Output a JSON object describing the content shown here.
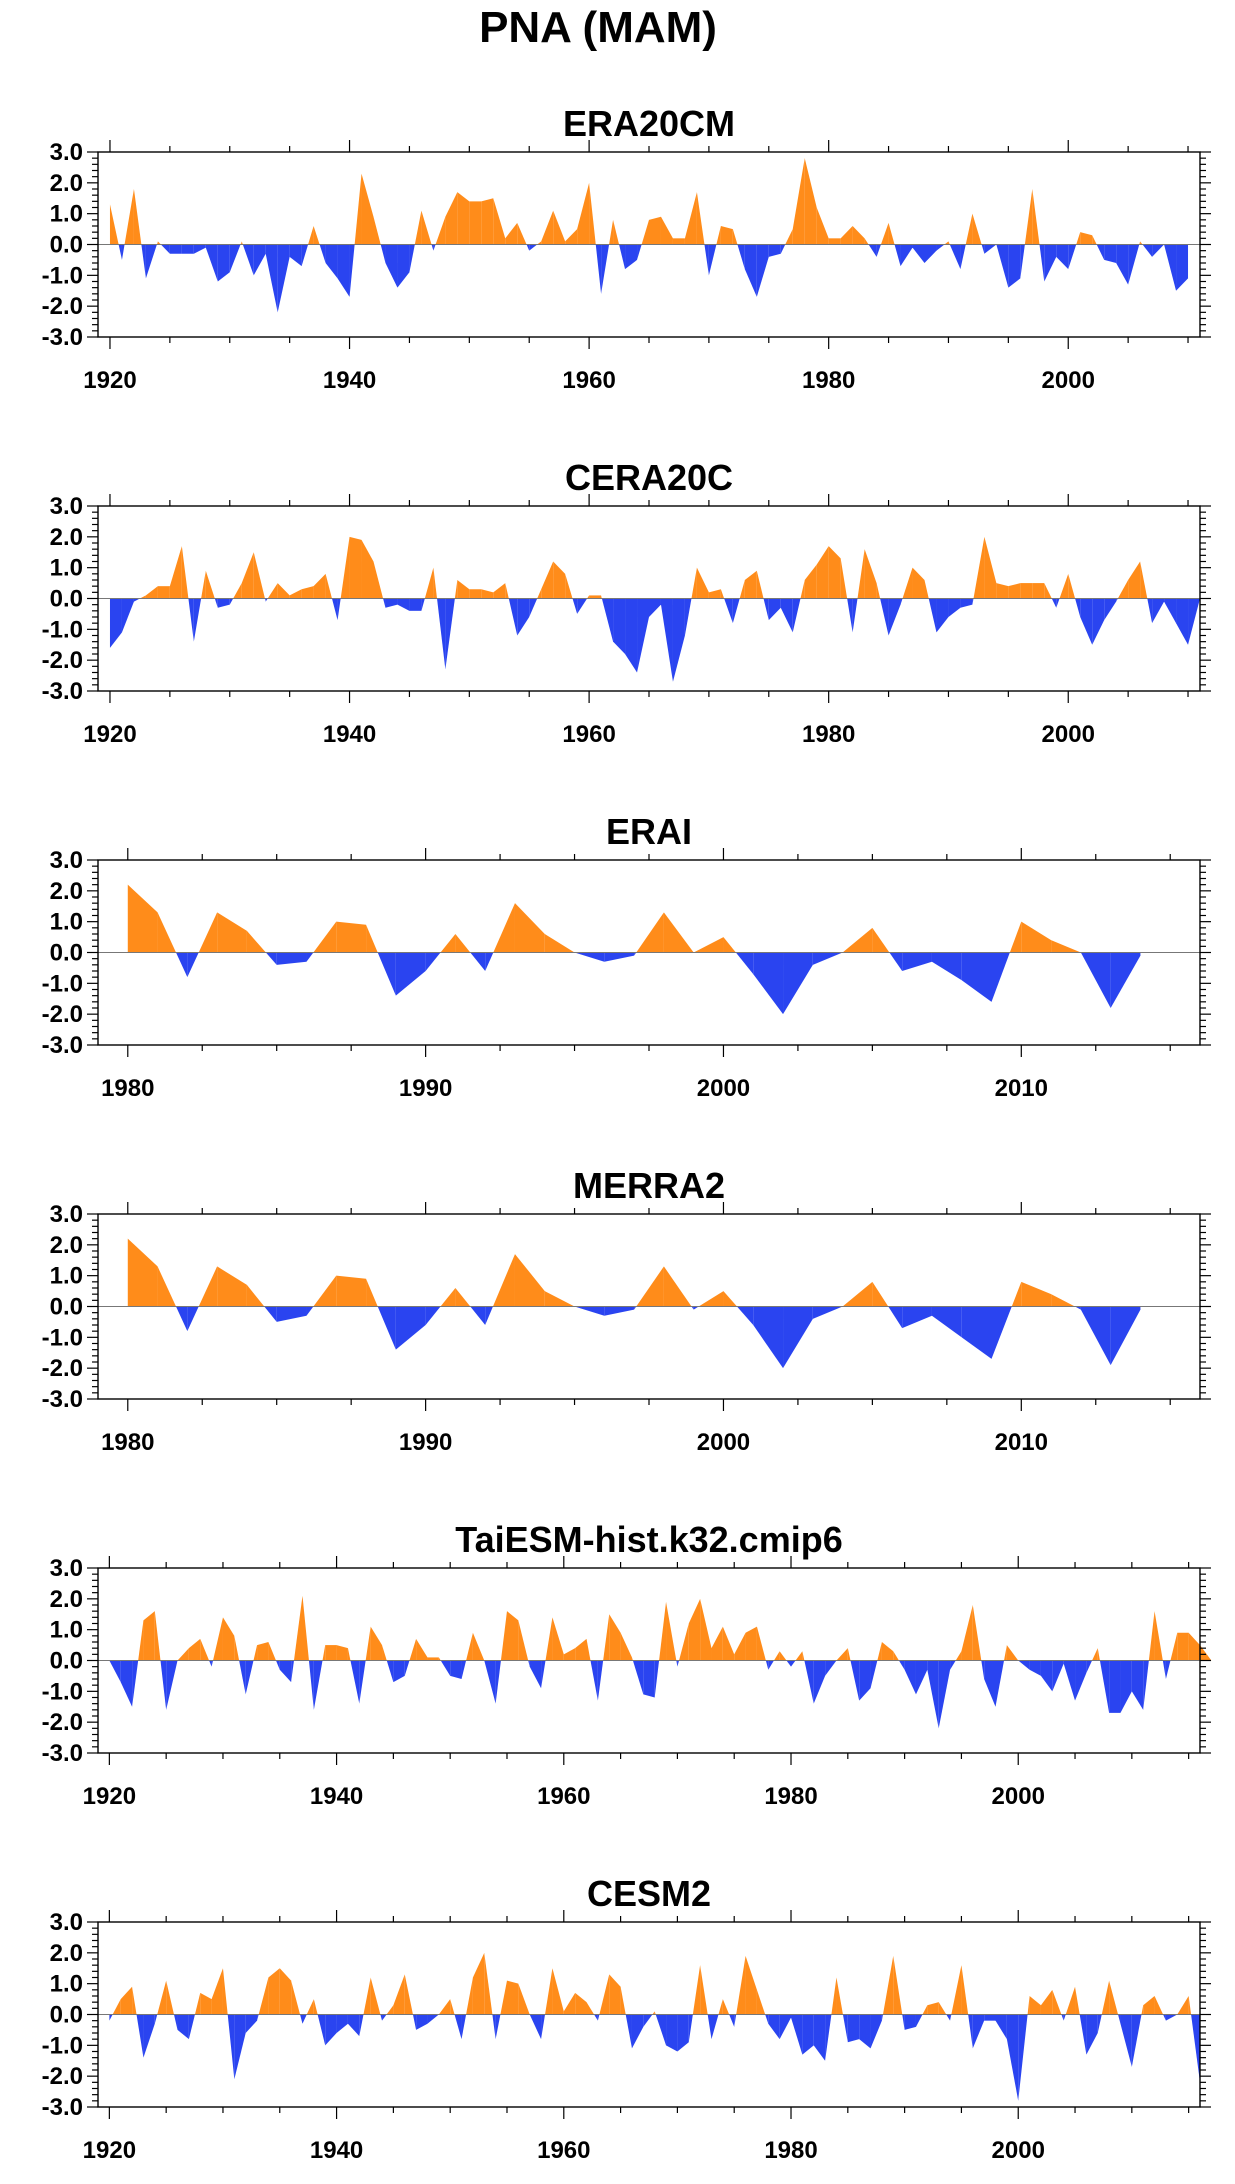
{
  "title": "PNA (MAM)",
  "colors": {
    "positive": "#ff8c1a",
    "negative": "#2a44f0",
    "axis": "#000000"
  },
  "chart_data": [
    {
      "type": "area",
      "title": "ERA20CM",
      "xlim": [
        1919,
        2011
      ],
      "ylim": [
        -3.0,
        3.0
      ],
      "yticks": [
        "3.0",
        "2.0",
        "1.0",
        "0.0",
        "-1.0",
        "-2.0",
        "-3.0"
      ],
      "xticks": [
        1920,
        1940,
        1960,
        1980,
        2000
      ],
      "x_start": 1920,
      "values": [
        1.3,
        -0.5,
        1.8,
        -1.1,
        0.1,
        -0.3,
        -0.3,
        -0.3,
        -0.1,
        -1.2,
        -0.9,
        0.1,
        -1.0,
        -0.3,
        -2.2,
        -0.4,
        -0.7,
        0.6,
        -0.6,
        -1.1,
        -1.7,
        2.3,
        0.9,
        -0.6,
        -1.4,
        -0.9,
        1.1,
        -0.2,
        0.9,
        1.7,
        1.4,
        1.4,
        1.5,
        0.2,
        0.7,
        -0.2,
        0.1,
        1.1,
        0.1,
        0.5,
        2.0,
        -1.6,
        0.8,
        -0.8,
        -0.5,
        0.8,
        0.9,
        0.2,
        0.2,
        1.7,
        -1.0,
        0.6,
        0.5,
        -0.8,
        -1.7,
        -0.4,
        -0.3,
        0.5,
        2.8,
        1.2,
        0.2,
        0.2,
        0.6,
        0.2,
        -0.4,
        0.7,
        -0.7,
        -0.1,
        -0.6,
        -0.2,
        0.1,
        -0.8,
        1.0,
        -0.3,
        0.0,
        -1.4,
        -1.1,
        1.8,
        -1.2,
        -0.4,
        -0.8,
        0.4,
        0.3,
        -0.5,
        -0.6,
        -1.3,
        0.1,
        -0.4,
        0.0,
        -1.5,
        -1.1
      ]
    },
    {
      "type": "area",
      "title": "CERA20C",
      "xlim": [
        1919,
        2011
      ],
      "ylim": [
        -3.0,
        3.0
      ],
      "yticks": [
        "3.0",
        "2.0",
        "1.0",
        "0.0",
        "-1.0",
        "-2.0",
        "-3.0"
      ],
      "xticks": [
        1920,
        1940,
        1960,
        1980,
        2000
      ],
      "x_start": 1920,
      "values": [
        -1.6,
        -1.1,
        -0.1,
        0.1,
        0.4,
        0.4,
        1.7,
        -1.4,
        0.9,
        -0.3,
        -0.2,
        0.5,
        1.5,
        -0.1,
        0.5,
        0.1,
        0.3,
        0.4,
        0.8,
        -0.7,
        2.0,
        1.9,
        1.2,
        -0.3,
        -0.2,
        -0.4,
        -0.4,
        1.0,
        -2.3,
        0.6,
        0.3,
        0.3,
        0.2,
        0.5,
        -1.2,
        -0.6,
        0.3,
        1.2,
        0.8,
        -0.5,
        0.1,
        0.1,
        -1.4,
        -1.8,
        -2.4,
        -0.6,
        -0.2,
        -2.7,
        -1.2,
        1.0,
        0.2,
        0.3,
        -0.8,
        0.6,
        0.9,
        -0.7,
        -0.3,
        -1.1,
        0.6,
        1.1,
        1.7,
        1.3,
        -1.1,
        1.6,
        0.5,
        -1.2,
        -0.2,
        1.0,
        0.6,
        -1.1,
        -0.6,
        -0.3,
        -0.2,
        2.0,
        0.5,
        0.4,
        0.5,
        0.5,
        0.5,
        -0.3,
        0.8,
        -0.6,
        -1.5,
        -0.7,
        -0.1,
        0.6,
        1.2,
        -0.8,
        -0.1,
        -0.8,
        -1.5,
        0.0
      ]
    },
    {
      "type": "area",
      "title": "ERAI",
      "xlim": [
        1979,
        2016
      ],
      "ylim": [
        -3.0,
        3.0
      ],
      "yticks": [
        "3.0",
        "2.0",
        "1.0",
        "0.0",
        "-1.0",
        "-2.0",
        "-3.0"
      ],
      "xticks": [
        1980,
        1990,
        2000,
        2010
      ],
      "x_start": 1980,
      "values": [
        2.2,
        1.3,
        -0.8,
        1.3,
        0.7,
        -0.4,
        -0.3,
        1.0,
        0.9,
        -1.4,
        -0.6,
        0.6,
        -0.6,
        1.6,
        0.6,
        0.0,
        -0.3,
        -0.1,
        1.3,
        0.0,
        0.5,
        -0.7,
        -2.0,
        -0.4,
        0.0,
        0.8,
        -0.6,
        -0.3,
        -0.9,
        -1.6,
        1.0,
        0.4,
        0.0,
        -1.8,
        -0.1
      ]
    },
    {
      "type": "area",
      "title": "MERRA2",
      "xlim": [
        1979,
        2016
      ],
      "ylim": [
        -3.0,
        3.0
      ],
      "yticks": [
        "3.0",
        "2.0",
        "1.0",
        "0.0",
        "-1.0",
        "-2.0",
        "-3.0"
      ],
      "xticks": [
        1980,
        1990,
        2000,
        2010
      ],
      "x_start": 1980,
      "values": [
        2.2,
        1.3,
        -0.8,
        1.3,
        0.7,
        -0.5,
        -0.3,
        1.0,
        0.9,
        -1.4,
        -0.6,
        0.6,
        -0.6,
        1.7,
        0.5,
        0.0,
        -0.3,
        -0.1,
        1.3,
        -0.1,
        0.5,
        -0.6,
        -2.0,
        -0.4,
        0.0,
        0.8,
        -0.7,
        -0.3,
        -1.0,
        -1.7,
        0.8,
        0.4,
        -0.1,
        -1.9,
        -0.1
      ]
    },
    {
      "type": "area",
      "title": "TaiESM-hist.k32.cmip6",
      "xlim": [
        1919,
        2016
      ],
      "ylim": [
        -3.0,
        3.0
      ],
      "yticks": [
        "3.0",
        "2.0",
        "1.0",
        "0.0",
        "-1.0",
        "-2.0",
        "-3.0"
      ],
      "xticks": [
        1920,
        1940,
        1960,
        1980,
        2000
      ],
      "x_start": 1920,
      "values": [
        0.0,
        -0.7,
        -1.5,
        1.3,
        1.6,
        -1.6,
        0.0,
        0.4,
        0.7,
        -0.2,
        1.4,
        0.8,
        -1.1,
        0.5,
        0.6,
        -0.3,
        -0.7,
        2.1,
        -1.6,
        0.5,
        0.5,
        0.4,
        -1.4,
        1.1,
        0.5,
        -0.7,
        -0.5,
        0.7,
        0.1,
        0.1,
        -0.5,
        -0.6,
        0.9,
        0.0,
        -1.4,
        1.6,
        1.3,
        -0.2,
        -0.9,
        1.4,
        0.2,
        0.4,
        0.7,
        -1.3,
        1.5,
        0.9,
        0.1,
        -1.1,
        -1.2,
        1.9,
        -0.2,
        1.2,
        2.0,
        0.4,
        1.1,
        0.2,
        0.9,
        1.1,
        -0.3,
        0.3,
        -0.2,
        0.3,
        -1.4,
        -0.5,
        0.0,
        0.4,
        -1.3,
        -0.9,
        0.6,
        0.3,
        -0.3,
        -1.1,
        -0.3,
        -2.2,
        -0.3,
        0.3,
        1.8,
        -0.6,
        -1.5,
        0.5,
        0.0,
        -0.3,
        -0.5,
        -1.0,
        -0.1,
        -1.3,
        -0.4,
        0.4,
        -1.7,
        -1.7,
        -1.0,
        -1.6,
        1.6,
        -0.6,
        0.9,
        0.9,
        0.5,
        0.0
      ]
    },
    {
      "type": "area",
      "title": "CESM2",
      "xlim": [
        1919,
        2016
      ],
      "ylim": [
        -3.0,
        3.0
      ],
      "yticks": [
        "3.0",
        "2.0",
        "1.0",
        "0.0",
        "-1.0",
        "-2.0",
        "-3.0"
      ],
      "xticks": [
        1920,
        1940,
        1960,
        1980,
        2000
      ],
      "x_start": 1920,
      "values": [
        -0.2,
        0.5,
        0.9,
        -1.4,
        -0.3,
        1.1,
        -0.5,
        -0.8,
        0.7,
        0.5,
        1.5,
        -2.1,
        -0.6,
        -0.2,
        1.2,
        1.5,
        1.1,
        -0.3,
        0.5,
        -1.0,
        -0.6,
        -0.3,
        -0.7,
        1.2,
        -0.2,
        0.3,
        1.3,
        -0.5,
        -0.3,
        0.0,
        0.5,
        -0.8,
        1.2,
        2.0,
        -0.8,
        1.1,
        1.0,
        0.0,
        -0.8,
        1.5,
        0.1,
        0.7,
        0.4,
        -0.2,
        1.3,
        0.9,
        -1.1,
        -0.4,
        0.1,
        -1.0,
        -1.2,
        -0.9,
        1.6,
        -0.8,
        0.5,
        -0.4,
        1.9,
        0.8,
        -0.3,
        -0.8,
        -0.1,
        -1.3,
        -1.0,
        -1.5,
        1.2,
        -0.9,
        -0.8,
        -1.1,
        -0.2,
        1.9,
        -0.5,
        -0.4,
        0.3,
        0.4,
        -0.2,
        1.6,
        -1.1,
        -0.2,
        -0.2,
        -0.8,
        -2.8,
        0.6,
        0.3,
        0.8,
        -0.2,
        0.9,
        -1.3,
        -0.6,
        1.1,
        -0.3,
        -1.7,
        0.3,
        0.6,
        -0.2,
        0.0,
        0.6,
        -2.2
      ]
    }
  ]
}
